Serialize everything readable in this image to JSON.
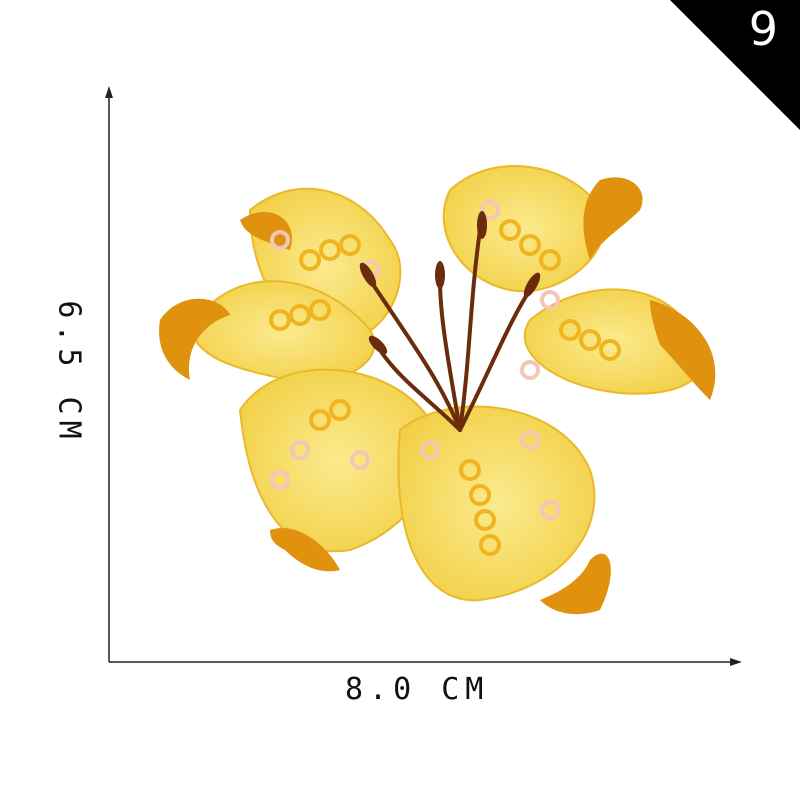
{
  "badge": {
    "number": "9"
  },
  "dimensions": {
    "width_label": "8.0 CM",
    "height_label": "6.5 CM"
  },
  "colors": {
    "petal": "#f6d85a",
    "petal_light": "#fbea8e",
    "petal_tip": "#e0920e",
    "sequin": "#f0b41e",
    "sequin_pink": "#f2c7b6",
    "stamen": "#6b2c0c",
    "badge_bg": "#000000"
  }
}
